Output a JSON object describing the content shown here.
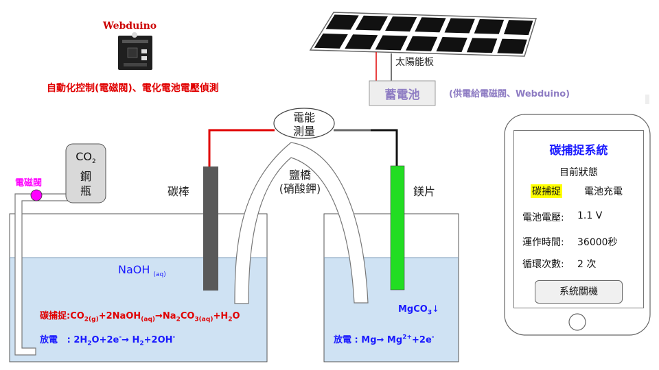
{
  "header": {
    "board_name": "Webduino",
    "board_caption": "自動化控制(電磁閥)、電化電池電壓偵測",
    "solar_label": "太陽能板",
    "battery_label": "蓄電池",
    "battery_caption": "(供電給電磁閥、Webduino)"
  },
  "apparatus": {
    "meter_line1": "電能",
    "meter_line2": "測量",
    "carbon_rod": "碳棒",
    "salt_bridge_line1": "鹽橋",
    "salt_bridge_line2": "(硝酸鉀)",
    "mg_strip": "鎂片",
    "valve_label": "電磁閥",
    "co2_line1": "CO",
    "co2_sub": "2",
    "co2_line2": "鋼",
    "co2_line3": "瓶",
    "naoh": "NaOH",
    "naoh_sub": "(aq)",
    "mgco3": "MgCO",
    "mgco3_sub": "3",
    "mgco3_arrow": "↓"
  },
  "equations": {
    "capture_prefix": "碳捕捉:",
    "capture_parts": [
      "CO",
      "2(g)",
      "+2NaOH",
      "(aq)",
      "→Na",
      "2",
      "CO",
      "3(aq)",
      "+H",
      "2",
      "O"
    ],
    "discharge_left_prefix": "放電",
    "discharge_left": [
      ": 2H",
      "2",
      "O+2e",
      "-",
      "→ H",
      "2",
      "+2OH",
      "-"
    ],
    "discharge_right_prefix": "放電",
    "discharge_right": [
      ": Mg→ Mg",
      "2+",
      "+2e",
      "-"
    ]
  },
  "phone": {
    "title": "碳捕捉系統",
    "status_heading": "目前狀態",
    "status_active": "碳捕捉",
    "status_other": "電池充電",
    "voltage_label": "電池電壓:",
    "voltage_value": "1.1 V",
    "runtime_label": "運作時間:",
    "runtime_value": "36000秒",
    "cycles_label": "循環次數:",
    "cycles_value": "2 次",
    "shutdown_button": "系統關機"
  },
  "colors": {
    "water": "#cfe2f3",
    "carbon_rod": "#595959",
    "mg_strip": "#22dd22",
    "positive_wire": "#e00000",
    "negative_wire": "#000000",
    "valve": "#ff00ff",
    "highlight": "#ffff00",
    "accent_blue": "#1a1aff",
    "caption_red": "#e00000",
    "caption_purple": "#8e7cc3"
  }
}
